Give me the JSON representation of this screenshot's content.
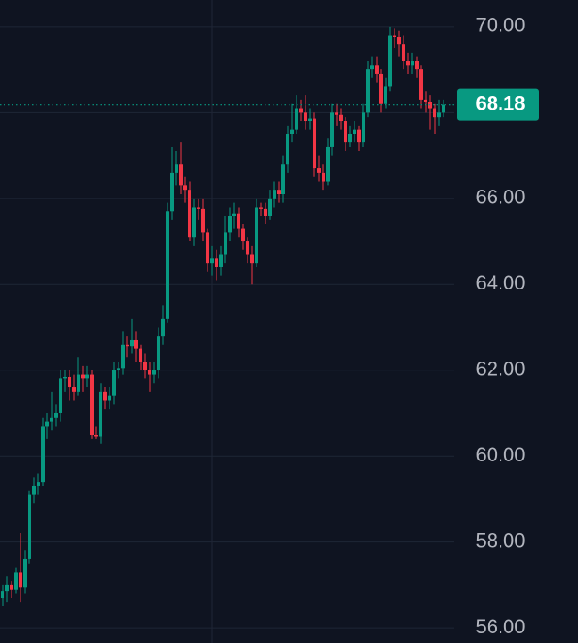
{
  "chart_data": {
    "type": "candlestick",
    "up_color": "#089981",
    "down_color": "#f23645",
    "grid": true,
    "ylim": [
      55.65,
      70.62
    ],
    "yticks": [
      {
        "value": 56,
        "label": "56.00"
      },
      {
        "value": 58,
        "label": "58.00"
      },
      {
        "value": 60,
        "label": "60.00"
      },
      {
        "value": 62,
        "label": "62.00"
      },
      {
        "value": 64,
        "label": "64.00"
      },
      {
        "value": 66,
        "label": "66.00"
      },
      {
        "value": 68,
        "label": "68.00"
      },
      {
        "value": 70,
        "label": "70.00"
      }
    ],
    "open": [
      56.7,
      56.85,
      57.0,
      56.9,
      57.3,
      56.95,
      57.6,
      59.1,
      59.3,
      59.4,
      60.7,
      60.8,
      60.9,
      61.0,
      61.8,
      61.85,
      61.6,
      61.5,
      61.9,
      61.8,
      61.9,
      60.5,
      60.45,
      61.5,
      61.3,
      61.4,
      62.0,
      62.05,
      62.6,
      62.55,
      62.7,
      62.5,
      62.2,
      62.0,
      61.9,
      62.0,
      62.8,
      63.2,
      65.7,
      66.6,
      66.8,
      66.3,
      66.2,
      65.1,
      65.8,
      65.75,
      65.2,
      64.5,
      64.6,
      64.4,
      64.7,
      65.2,
      65.6,
      65.65,
      65.3,
      65.0,
      64.7,
      64.5,
      65.8,
      65.75,
      65.6,
      66.0,
      66.2,
      66.1,
      66.8,
      67.5,
      67.6,
      68.1,
      68.0,
      67.8,
      67.85,
      66.7,
      66.6,
      66.4,
      67.2,
      68.0,
      67.95,
      67.8,
      67.3,
      67.5,
      67.6,
      67.3,
      68.0,
      69.0,
      69.1,
      68.9,
      68.2,
      68.6,
      69.8,
      69.75,
      69.6,
      69.2,
      69.1,
      69.2,
      69.0,
      68.3,
      68.25,
      68.1,
      67.9,
      68.0
    ],
    "high": [
      57.0,
      57.2,
      57.1,
      57.4,
      58.2,
      57.8,
      59.2,
      59.5,
      59.6,
      60.9,
      61.0,
      61.5,
      61.2,
      62.0,
      62.0,
      62.0,
      61.9,
      62.3,
      62.1,
      62.1,
      62.0,
      60.7,
      61.7,
      61.6,
      61.6,
      62.2,
      62.2,
      62.9,
      62.8,
      63.2,
      62.9,
      62.6,
      62.4,
      62.2,
      62.2,
      63.0,
      63.5,
      65.9,
      67.2,
      67.1,
      67.3,
      66.5,
      66.4,
      66.0,
      66.0,
      66.0,
      65.3,
      64.9,
      64.8,
      64.9,
      65.6,
      65.8,
      65.9,
      65.8,
      65.4,
      65.1,
      64.9,
      66.0,
      65.9,
      65.9,
      66.2,
      66.4,
      66.4,
      67.0,
      67.7,
      68.2,
      68.4,
      68.3,
      68.4,
      68.1,
      68.0,
      67.0,
      66.8,
      67.4,
      68.2,
      68.2,
      68.1,
      67.9,
      67.7,
      67.8,
      67.7,
      68.2,
      69.2,
      69.3,
      69.3,
      69.0,
      68.8,
      70.0,
      69.95,
      69.9,
      69.8,
      69.4,
      69.4,
      69.3,
      69.1,
      68.5,
      68.4,
      68.2,
      68.3,
      68.3
    ],
    "low": [
      56.5,
      56.6,
      56.7,
      56.8,
      56.6,
      56.8,
      57.5,
      58.9,
      59.1,
      59.3,
      60.4,
      60.6,
      60.7,
      60.8,
      61.5,
      61.3,
      61.3,
      61.4,
      61.5,
      61.6,
      60.4,
      60.4,
      60.3,
      61.1,
      61.1,
      61.2,
      61.8,
      61.9,
      62.3,
      62.4,
      62.2,
      62.0,
      61.8,
      61.5,
      61.7,
      61.8,
      62.6,
      63.1,
      65.5,
      66.3,
      66.1,
      65.9,
      65.0,
      64.9,
      65.5,
      65.0,
      64.3,
      64.2,
      64.1,
      64.2,
      64.5,
      65.0,
      65.3,
      65.1,
      64.8,
      64.5,
      64.0,
      64.4,
      65.6,
      65.4,
      65.5,
      65.8,
      65.9,
      65.9,
      66.6,
      67.3,
      67.5,
      67.8,
      67.6,
      67.6,
      66.5,
      66.4,
      66.2,
      66.3,
      67.0,
      67.7,
      67.6,
      67.1,
      67.2,
      67.3,
      67.1,
      67.2,
      67.9,
      68.8,
      68.7,
      68.0,
      68.1,
      68.5,
      69.5,
      69.3,
      69.0,
      68.9,
      68.9,
      68.8,
      68.1,
      68.0,
      67.6,
      67.5,
      67.7,
      67.9
    ],
    "close": [
      56.85,
      57.0,
      56.9,
      57.3,
      56.95,
      57.6,
      59.1,
      59.3,
      59.4,
      60.7,
      60.8,
      60.9,
      61.0,
      61.8,
      61.85,
      61.6,
      61.5,
      61.9,
      61.8,
      61.9,
      60.5,
      60.45,
      61.5,
      61.3,
      61.4,
      62.0,
      62.05,
      62.6,
      62.55,
      62.7,
      62.5,
      62.2,
      62.0,
      61.9,
      62.0,
      62.8,
      63.2,
      65.7,
      66.6,
      66.8,
      66.3,
      66.2,
      65.1,
      65.8,
      65.75,
      65.2,
      64.5,
      64.6,
      64.4,
      64.7,
      65.2,
      65.6,
      65.65,
      65.3,
      65.0,
      64.7,
      64.5,
      65.8,
      65.75,
      65.6,
      66.0,
      66.2,
      66.1,
      66.8,
      67.5,
      67.6,
      68.1,
      68.0,
      67.8,
      67.85,
      66.7,
      66.6,
      66.4,
      67.2,
      68.0,
      67.95,
      67.8,
      67.3,
      67.5,
      67.6,
      67.3,
      68.0,
      69.0,
      69.1,
      68.9,
      68.2,
      68.6,
      69.8,
      69.75,
      69.6,
      69.2,
      69.1,
      69.2,
      69.0,
      68.3,
      68.25,
      68.1,
      67.9,
      68.0,
      68.18
    ]
  }
}
